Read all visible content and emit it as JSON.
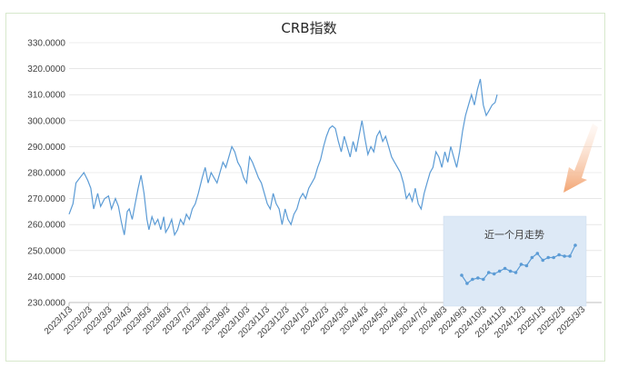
{
  "chart_data": [
    {
      "type": "line",
      "title": "CRB指数",
      "xlabel": "",
      "ylabel": "",
      "ylim": [
        230,
        330
      ],
      "yticks": [
        "230.0000",
        "240.0000",
        "250.0000",
        "260.0000",
        "270.0000",
        "280.0000",
        "290.0000",
        "300.0000",
        "310.0000",
        "320.0000",
        "330.0000"
      ],
      "xticks": [
        "2023/1/3",
        "2023/2/3",
        "2023/3/3",
        "2023/4/3",
        "2023/5/3",
        "2023/6/3",
        "2023/7/3",
        "2023/8/3",
        "2023/9/3",
        "2023/10/3",
        "2023/11/3",
        "2023/12/3",
        "2024/1/3",
        "2024/2/3",
        "2024/3/3",
        "2024/4/3",
        "2024/5/3",
        "2024/6/3",
        "2024/7/3",
        "2024/8/3",
        "2024/9/3",
        "2024/10/3",
        "2024/11/3",
        "2024/12/3",
        "2025/1/3",
        "2025/2/3",
        "2025/3/3"
      ],
      "grid": true,
      "legend": "none",
      "line_color": "#5b9bd5",
      "series": [
        {
          "values": [
            [
              0,
              264
            ],
            [
              0.2,
              268
            ],
            [
              0.35,
              276
            ],
            [
              0.55,
              278
            ],
            [
              0.75,
              280
            ],
            [
              0.95,
              277
            ],
            [
              1.1,
              274
            ],
            [
              1.25,
              266
            ],
            [
              1.45,
              272
            ],
            [
              1.6,
              267
            ],
            [
              1.8,
              270
            ],
            [
              2.0,
              271
            ],
            [
              2.15,
              266
            ],
            [
              2.35,
              270
            ],
            [
              2.5,
              267
            ],
            [
              2.65,
              261
            ],
            [
              2.8,
              256
            ],
            [
              2.95,
              265
            ],
            [
              3.05,
              266
            ],
            [
              3.2,
              262
            ],
            [
              3.35,
              268
            ],
            [
              3.5,
              274
            ],
            [
              3.65,
              279
            ],
            [
              3.8,
              272
            ],
            [
              3.95,
              262
            ],
            [
              4.05,
              258
            ],
            [
              4.2,
              263
            ],
            [
              4.35,
              260
            ],
            [
              4.5,
              262
            ],
            [
              4.65,
              258
            ],
            [
              4.8,
              263
            ],
            [
              4.9,
              257
            ],
            [
              5.05,
              259
            ],
            [
              5.2,
              262
            ],
            [
              5.35,
              256
            ],
            [
              5.5,
              258
            ],
            [
              5.65,
              262
            ],
            [
              5.8,
              260
            ],
            [
              5.95,
              264
            ],
            [
              6.1,
              262
            ],
            [
              6.25,
              266
            ],
            [
              6.4,
              268
            ],
            [
              6.55,
              272
            ],
            [
              6.75,
              278
            ],
            [
              6.9,
              282
            ],
            [
              7.05,
              276
            ],
            [
              7.2,
              280
            ],
            [
              7.35,
              278
            ],
            [
              7.5,
              276
            ],
            [
              7.65,
              280
            ],
            [
              7.8,
              284
            ],
            [
              7.95,
              282
            ],
            [
              8.1,
              286
            ],
            [
              8.25,
              290
            ],
            [
              8.4,
              288
            ],
            [
              8.55,
              284
            ],
            [
              8.7,
              282
            ],
            [
              8.85,
              278
            ],
            [
              9.0,
              276
            ],
            [
              9.15,
              286
            ],
            [
              9.3,
              284
            ],
            [
              9.45,
              281
            ],
            [
              9.6,
              278
            ],
            [
              9.75,
              276
            ],
            [
              9.9,
              272
            ],
            [
              10.05,
              268
            ],
            [
              10.2,
              266
            ],
            [
              10.35,
              272
            ],
            [
              10.5,
              268
            ],
            [
              10.65,
              266
            ],
            [
              10.8,
              260
            ],
            [
              10.95,
              266
            ],
            [
              11.1,
              262
            ],
            [
              11.25,
              260
            ],
            [
              11.4,
              264
            ],
            [
              11.55,
              266
            ],
            [
              11.7,
              270
            ],
            [
              11.85,
              272
            ],
            [
              12.0,
              270
            ],
            [
              12.15,
              274
            ],
            [
              12.3,
              276
            ],
            [
              12.45,
              278
            ],
            [
              12.6,
              282
            ],
            [
              12.75,
              285
            ],
            [
              12.9,
              290
            ],
            [
              13.05,
              294
            ],
            [
              13.2,
              297
            ],
            [
              13.35,
              298
            ],
            [
              13.5,
              297
            ],
            [
              13.65,
              292
            ],
            [
              13.8,
              288
            ],
            [
              13.95,
              294
            ],
            [
              14.1,
              290
            ],
            [
              14.25,
              286
            ],
            [
              14.4,
              292
            ],
            [
              14.55,
              288
            ],
            [
              14.7,
              294
            ],
            [
              14.85,
              300
            ],
            [
              15.0,
              293
            ],
            [
              15.15,
              287
            ],
            [
              15.3,
              290
            ],
            [
              15.45,
              288
            ],
            [
              15.6,
              294
            ],
            [
              15.75,
              296
            ],
            [
              15.9,
              292
            ],
            [
              16.05,
              294
            ],
            [
              16.2,
              290
            ],
            [
              16.35,
              286
            ],
            [
              16.5,
              284
            ],
            [
              16.65,
              282
            ],
            [
              16.8,
              280
            ],
            [
              16.95,
              276
            ],
            [
              17.1,
              270
            ],
            [
              17.25,
              272
            ],
            [
              17.4,
              269
            ],
            [
              17.55,
              274
            ],
            [
              17.7,
              268
            ],
            [
              17.85,
              266
            ],
            [
              18.0,
              272
            ],
            [
              18.15,
              276
            ],
            [
              18.3,
              280
            ],
            [
              18.45,
              282
            ],
            [
              18.6,
              288
            ],
            [
              18.75,
              286
            ],
            [
              18.9,
              282
            ],
            [
              19.05,
              288
            ],
            [
              19.2,
              284
            ],
            [
              19.35,
              290
            ],
            [
              19.5,
              286
            ],
            [
              19.65,
              282
            ],
            [
              19.8,
              288
            ],
            [
              19.95,
              296
            ],
            [
              20.1,
              302
            ],
            [
              20.25,
              306
            ],
            [
              20.4,
              310
            ],
            [
              20.55,
              306
            ],
            [
              20.7,
              312
            ],
            [
              20.85,
              316
            ],
            [
              21.0,
              306
            ],
            [
              21.15,
              302
            ],
            [
              21.3,
              304
            ],
            [
              21.45,
              306
            ],
            [
              21.6,
              307
            ],
            [
              21.7,
              310
            ]
          ]
        }
      ]
    },
    {
      "type": "line",
      "title": "近一个月走势",
      "xlabel": "",
      "ylabel": "",
      "grid": false,
      "legend": "none",
      "background": "#dde9f6",
      "series": [
        {
          "values": [
            [
              0,
              241
            ],
            [
              1,
              238
            ],
            [
              2,
              239.5
            ],
            [
              3,
              240
            ],
            [
              4,
              239.5
            ],
            [
              5,
              242
            ],
            [
              6,
              241.5
            ],
            [
              7,
              242.5
            ],
            [
              8,
              243.5
            ],
            [
              9,
              242.5
            ],
            [
              10,
              242
            ],
            [
              11,
              245
            ],
            [
              12,
              244.5
            ],
            [
              13,
              247.5
            ],
            [
              14,
              249
            ],
            [
              15,
              246.5
            ],
            [
              16,
              247.5
            ],
            [
              17,
              247.5
            ],
            [
              18,
              248.5
            ],
            [
              19,
              248
            ],
            [
              20,
              248
            ],
            [
              21,
              252
            ]
          ]
        }
      ]
    }
  ]
}
